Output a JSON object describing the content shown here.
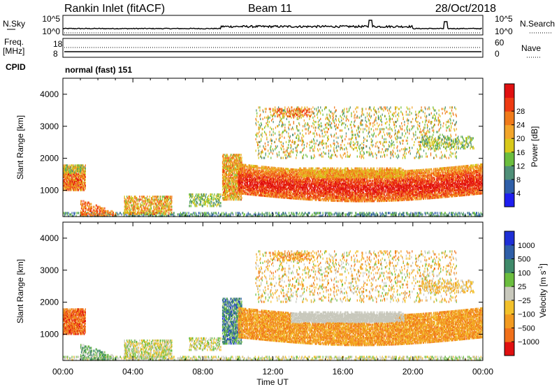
{
  "header": {
    "station": "Rankin Inlet (fitACF)",
    "beam": "Beam 11",
    "date": "28/Oct/2018"
  },
  "params": {
    "nsky_label": "N.Sky",
    "nsearch_label": "N.Search",
    "nsky_ticks": [
      "10^5",
      "10^0"
    ],
    "nsearch_ticks": [
      "10^5",
      "10^0"
    ],
    "freq_label_top": "Freq.",
    "freq_label_bottom": "[MHz]",
    "freq_ticks": [
      "18",
      "8"
    ],
    "nave_label": "Nave",
    "nave_ticks": [
      "60",
      "0"
    ],
    "cpid_label": "CPID",
    "cpid_value": "normal (fast) 151"
  },
  "chart_data": [
    {
      "type": "heatmap",
      "quantity": "power",
      "ylabel": "Slant Range [km]",
      "xlabel": "",
      "ylim": [
        180,
        4500
      ],
      "xlim_hours": [
        0,
        24
      ],
      "y_ticks": [
        1000,
        2000,
        3000,
        4000
      ],
      "colorbar": {
        "label": "Power [dB]",
        "ticks": [
          "4",
          "8",
          "12",
          "16",
          "20",
          "24",
          "28"
        ],
        "colors": [
          "#1e1ef0",
          "#2f5fa8",
          "#4f8f78",
          "#6bbd3e",
          "#d8c81a",
          "#f2a52a",
          "#f07a1a",
          "#ee3a12",
          "#e01010"
        ]
      }
    },
    {
      "type": "heatmap",
      "quantity": "velocity",
      "ylabel": "Slant Range [km]",
      "xlabel": "Time UT",
      "ylim": [
        180,
        4500
      ],
      "xlim_hours": [
        0,
        24
      ],
      "y_ticks": [
        1000,
        2000,
        3000,
        4000
      ],
      "x_tick_labels": [
        "00:00",
        "04:00",
        "08:00",
        "12:00",
        "16:00",
        "20:00",
        "00:00"
      ],
      "colorbar": {
        "label": "Velocity [m s^-1]",
        "ticks": [
          "1000",
          "500",
          "100",
          "25",
          "−25",
          "−100",
          "−500",
          "−1000"
        ],
        "colors": [
          "#1e2fd6",
          "#2f5fa8",
          "#3f8a6a",
          "#6bbd3e",
          "#c8c8bc",
          "#f2c02a",
          "#f29a20",
          "#f0701a",
          "#e01010"
        ]
      }
    }
  ]
}
